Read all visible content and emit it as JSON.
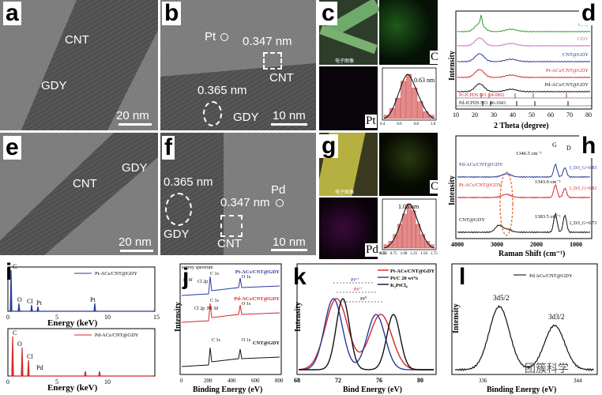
{
  "panels": {
    "a": {
      "label": "a",
      "cnt": "CNT",
      "gdy": "GDY",
      "scale": "20 nm"
    },
    "b": {
      "label": "b",
      "pt": "Pt",
      "d1": "0.347 nm",
      "cnt": "CNT",
      "d2": "0.365 nm",
      "gdy": "GDY",
      "scale": "10 nm"
    },
    "c": {
      "label": "c",
      "pt": "Pt",
      "c": "C",
      "size": "0.63 nm",
      "legend": "电子图像"
    },
    "d": {
      "label": "d"
    },
    "e": {
      "label": "e",
      "gdy": "GDY",
      "cnt": "CNT",
      "scale": "20 nm"
    },
    "f": {
      "label": "f",
      "pd": "Pd",
      "d1": "0.365 nm",
      "d2": "0.347 nm",
      "gdy": "GDY",
      "cnt": "CNT",
      "scale": "10 nm"
    },
    "g": {
      "label": "g",
      "pd": "Pd",
      "c": "C",
      "size": "1.05 nm",
      "legend": "电子图像"
    },
    "h": {
      "label": "h"
    },
    "i": {
      "label": "i"
    },
    "j": {
      "label": "j"
    },
    "k": {
      "label": "k"
    },
    "l": {
      "label": "l"
    }
  },
  "watermark": "团簇科学",
  "chart_data": [
    {
      "id": "c-hist",
      "type": "bar",
      "xlabel": "",
      "ylabel": "",
      "categories": [
        "0.2",
        "0.3",
        "0.4",
        "0.5",
        "0.6",
        "0.7",
        "0.8",
        "0.9",
        "1.0"
      ],
      "values": [
        2,
        6,
        12,
        22,
        26,
        18,
        10,
        4,
        2
      ],
      "xticks": [
        "0.4",
        "0.6",
        "0.8",
        "1.0"
      ],
      "annotation": "0.63 nm"
    },
    {
      "id": "g-hist",
      "type": "bar",
      "xlabel": "",
      "ylabel": "",
      "categories": [
        "0.5",
        "0.6",
        "0.7",
        "0.8",
        "0.9",
        "1.0",
        "1.1",
        "1.2",
        "1.3",
        "1.4",
        "1.5"
      ],
      "values": [
        2,
        4,
        8,
        14,
        20,
        26,
        22,
        14,
        8,
        4,
        2
      ],
      "xticks": [
        "0.50",
        "0.75",
        "1.00",
        "1.25",
        "1.50",
        "1.75"
      ],
      "xticks_left": "0.25",
      "annotation": "1.05 nm"
    },
    {
      "id": "d",
      "type": "line",
      "xlabel": "2 Theta (degree)",
      "ylabel": "Intensity",
      "xlim": [
        10,
        80
      ],
      "xticks": [
        "10",
        "20",
        "30",
        "40",
        "50",
        "60",
        "70",
        "80"
      ],
      "series": [
        {
          "name": "CNT",
          "color": "#2ca02c"
        },
        {
          "name": "GDY",
          "color": "#d070c0"
        },
        {
          "name": "CNT@GDY",
          "color": "#2a3a9a"
        },
        {
          "name": "Pt-ACs/CNT@GDY",
          "color": "#d62728"
        },
        {
          "name": "Pd-ACs/CNT@GDY",
          "color": "#111111"
        }
      ],
      "refs": [
        {
          "name": "Pt-JCPDS NO. 04-0802",
          "color": "#d62728"
        },
        {
          "name": "Pd-JCPDS NO. 46-1043",
          "color": "#111111"
        }
      ]
    },
    {
      "id": "h",
      "type": "line",
      "xlabel": "Raman Shift (cm⁻¹)",
      "ylabel": "Intensity",
      "xlim": [
        4000,
        500
      ],
      "xticks": [
        "4000",
        "3000",
        "2000",
        "1000"
      ],
      "series": [
        {
          "name": "Pd-ACs/CNT@GDY",
          "color": "#2a3a9a",
          "ratio": "I_D/I_G=0.83",
          "peak": "1346.5 cm⁻¹"
        },
        {
          "name": "Pt-ACs/CNT@GDY",
          "color": "#d62728",
          "ratio": "I_D/I_G=0.82",
          "peak": "1343.0 cm⁻¹"
        },
        {
          "name": "CNT@GDY",
          "color": "#111111",
          "ratio": "I_D/I_G=0.73",
          "peak": "1383.5 cm⁻¹"
        }
      ],
      "annotations": [
        "G",
        "D"
      ]
    },
    {
      "id": "i-top",
      "type": "bar",
      "xlabel": "Energy (keV)",
      "ylabel": "",
      "legend": "Pt-ACs/CNT@GDY",
      "color": "#2a3a9a",
      "xticks": [
        "0",
        "5",
        "10",
        "15"
      ],
      "peaks": [
        "C",
        "O",
        "Cl",
        "Pt",
        "Pt"
      ]
    },
    {
      "id": "i-bot",
      "type": "bar",
      "xlabel": "Energy (keV)",
      "ylabel": "",
      "legend": "Pd-ACs/CNT@GDY",
      "color": "#d62728",
      "xticks": [
        "0",
        "5",
        "10"
      ],
      "peaks": [
        "C",
        "O",
        "Cl",
        "Pd"
      ]
    },
    {
      "id": "j",
      "type": "line",
      "xlabel": "Binding Energy (eV)",
      "ylabel": "Intensity",
      "xticks": [
        "0",
        "200",
        "400",
        "600",
        "800"
      ],
      "series": [
        {
          "name": "Pt-ACs/CNT@GDY",
          "color": "#2a3a9a"
        },
        {
          "name": "Pd-ACs/CNT@GDY",
          "color": "#d62728"
        },
        {
          "name": "CNT@GDY",
          "color": "#111111"
        }
      ],
      "annotations": [
        "survey spectrum",
        "Pt 4f",
        "Cl 2p",
        "C 1s",
        "O 1s",
        "Cl 2p",
        "Pd 3d",
        "C 1s",
        "O 1s",
        "C 1s",
        "O 1s"
      ]
    },
    {
      "id": "k",
      "type": "line",
      "xlabel": "Bind Energy (eV)",
      "ylabel": "Intensity",
      "xticks": [
        "68",
        "72",
        "76",
        "80"
      ],
      "series": [
        {
          "name": "Pt-ACs/CNT@GDY",
          "color": "#d62728"
        },
        {
          "name": "Pt/C 20 wt%",
          "color": "#2a3a9a"
        },
        {
          "name": "K₂PtCl₄",
          "color": "#111111"
        }
      ],
      "annotations": [
        "Pt⁴⁺",
        "Pt²⁺",
        "Pt⁰"
      ]
    },
    {
      "id": "l",
      "type": "line",
      "xlabel": "Binding Energy (eV)",
      "ylabel": "Intensity",
      "xticks": [
        "336",
        "344"
      ],
      "series": [
        {
          "name": "Pd ACs/CNT@GDY",
          "color": "#111111"
        }
      ],
      "annotations": [
        "3d5/2",
        "3d3/2"
      ]
    }
  ],
  "labels": {
    "d_xlabel": "2 Theta (degree)",
    "d_ylabel": "Intensity",
    "h_xlabel": "Raman Shift (cm⁻¹)",
    "h_ylabel": "Intensity",
    "i_xlabel": "Energy (keV)",
    "j_xlabel": "Binding Energy (eV)",
    "j_ylabel": "Intensity",
    "k_xlabel": "Bind Energy (eV)",
    "k_ylabel": "Intensity",
    "l_xlabel": "Binding Energy (eV)",
    "l_ylabel": "Intensity"
  }
}
